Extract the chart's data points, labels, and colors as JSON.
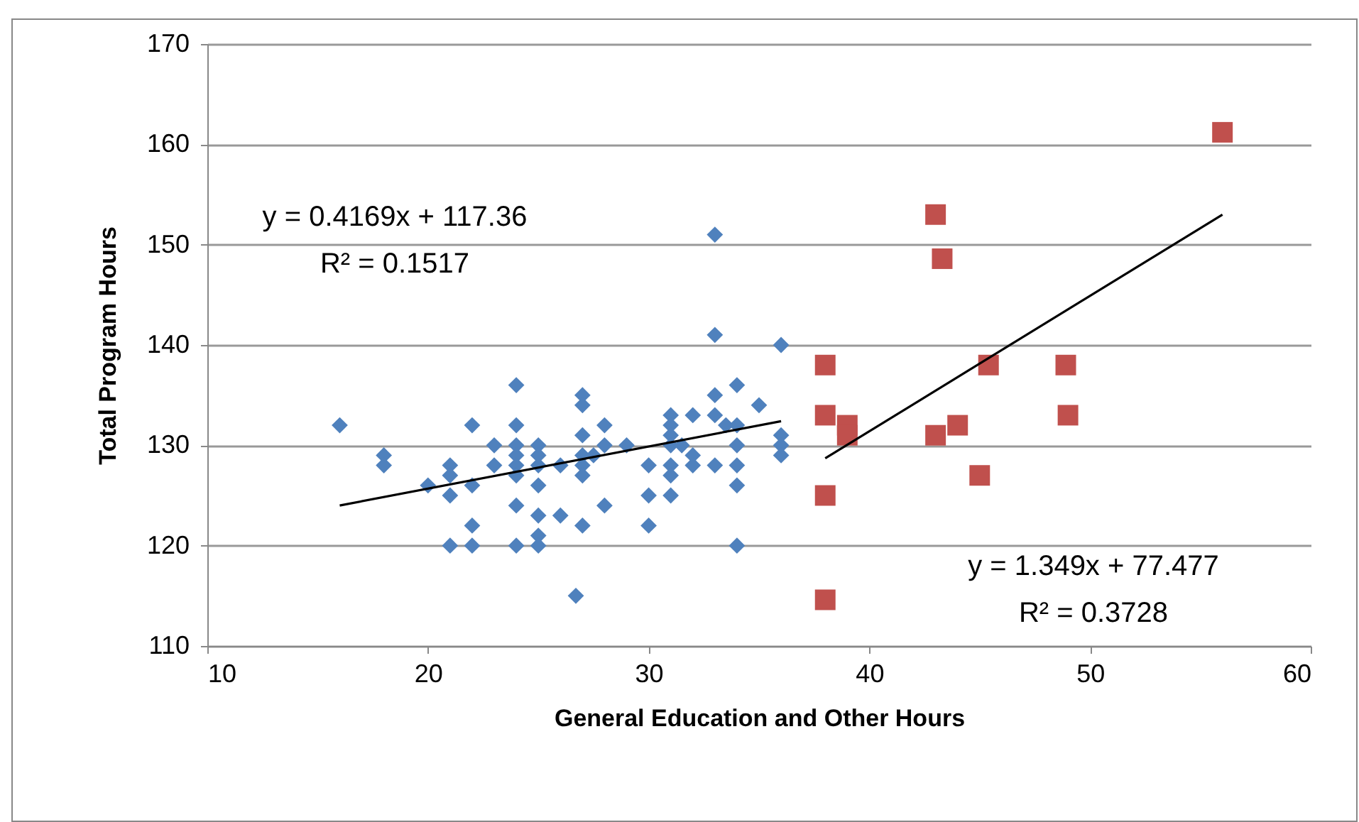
{
  "chart_data": {
    "type": "scatter",
    "xlabel": "General Education and Other Hours",
    "ylabel": "Total Program Hours",
    "xlim": [
      10,
      60
    ],
    "xticks": [
      10,
      20,
      30,
      40,
      50,
      60
    ],
    "ylim": [
      110,
      170
    ],
    "yticks": [
      110,
      120,
      130,
      140,
      150,
      160,
      170
    ],
    "grid": "y",
    "annotations": [
      "y = 0.4169x + 117.36\nR² = 0.1517",
      "y = 1.349x + 77.477\nR² = 0.3728"
    ],
    "series": [
      {
        "marker": "diamond",
        "color": "#4f81bd",
        "x": [
          16,
          18,
          18,
          20,
          21,
          21,
          21,
          21,
          22,
          22,
          22,
          22,
          23,
          23,
          24,
          24,
          24,
          24,
          24,
          24,
          24,
          24,
          25,
          25,
          25,
          25,
          25,
          25,
          25,
          26,
          26,
          26.7,
          27,
          27,
          27,
          27,
          27,
          27,
          27,
          27.5,
          28,
          28,
          28,
          29,
          30,
          30,
          30,
          31,
          31,
          31,
          31,
          31,
          31,
          31,
          31.5,
          32,
          32,
          32,
          33,
          33,
          33,
          33,
          33,
          33.5,
          34,
          34,
          34,
          34,
          34,
          34,
          35,
          36,
          36,
          36,
          36
        ],
        "values": [
          132,
          129,
          128,
          126,
          128,
          127,
          125,
          120,
          132,
          126,
          122,
          120,
          130,
          128,
          136,
          132,
          130,
          129,
          128,
          127,
          124,
          120,
          130,
          129,
          128,
          126,
          123,
          121,
          120,
          128,
          123,
          115,
          135,
          134,
          131,
          129,
          128,
          127,
          122,
          129,
          132,
          130,
          124,
          130,
          128,
          125,
          122,
          133,
          132,
          131,
          130,
          128,
          127,
          125,
          130,
          133,
          129,
          128,
          151,
          141,
          135,
          133,
          128,
          132,
          136,
          132,
          130,
          128,
          126,
          120,
          134,
          140,
          131,
          130,
          129
        ]
      },
      {
        "marker": "square",
        "color": "#c0504d",
        "x": [
          38,
          38,
          38,
          38,
          39,
          39,
          43,
          43.3,
          43,
          44,
          45,
          45.4,
          48.9,
          49,
          56
        ],
        "values": [
          138,
          133,
          125,
          114.6,
          132,
          131,
          153,
          148.6,
          131,
          132,
          127,
          138,
          138,
          133,
          161.2
        ]
      },
      {
        "type": "line",
        "marker": "none",
        "color": "#000000",
        "x": [
          16,
          36
        ],
        "values": [
          124.0,
          132.4
        ]
      },
      {
        "type": "line",
        "marker": "none",
        "color": "#000000",
        "x": [
          38,
          56
        ],
        "values": [
          128.7,
          153.0
        ]
      }
    ]
  }
}
